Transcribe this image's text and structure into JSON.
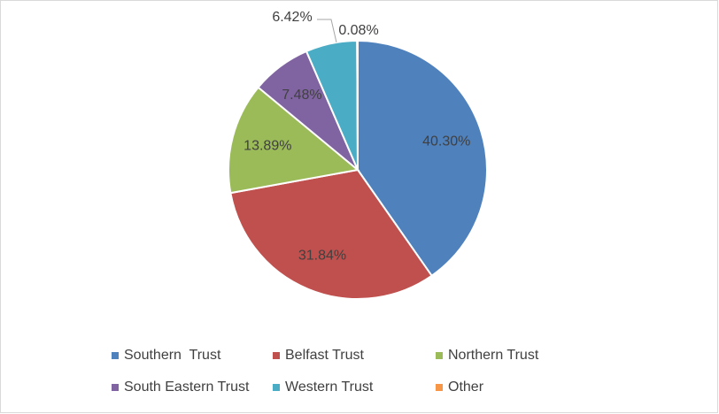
{
  "chart_data": {
    "type": "pie",
    "categories": [
      "Southern  Trust",
      "Belfast Trust",
      "Northern Trust",
      "South Eastern Trust",
      "Western Trust",
      "Other"
    ],
    "values": [
      40.3,
      31.84,
      13.89,
      7.48,
      6.42,
      0.08
    ],
    "value_labels": [
      "40.30%",
      "31.84%",
      "13.89%",
      "7.48%",
      "6.42%",
      "0.08%"
    ],
    "colors": [
      "#4f81bd",
      "#c0504d",
      "#9bbb59",
      "#8064a2",
      "#4bacc6",
      "#f79646"
    ],
    "legend": "bottom"
  }
}
